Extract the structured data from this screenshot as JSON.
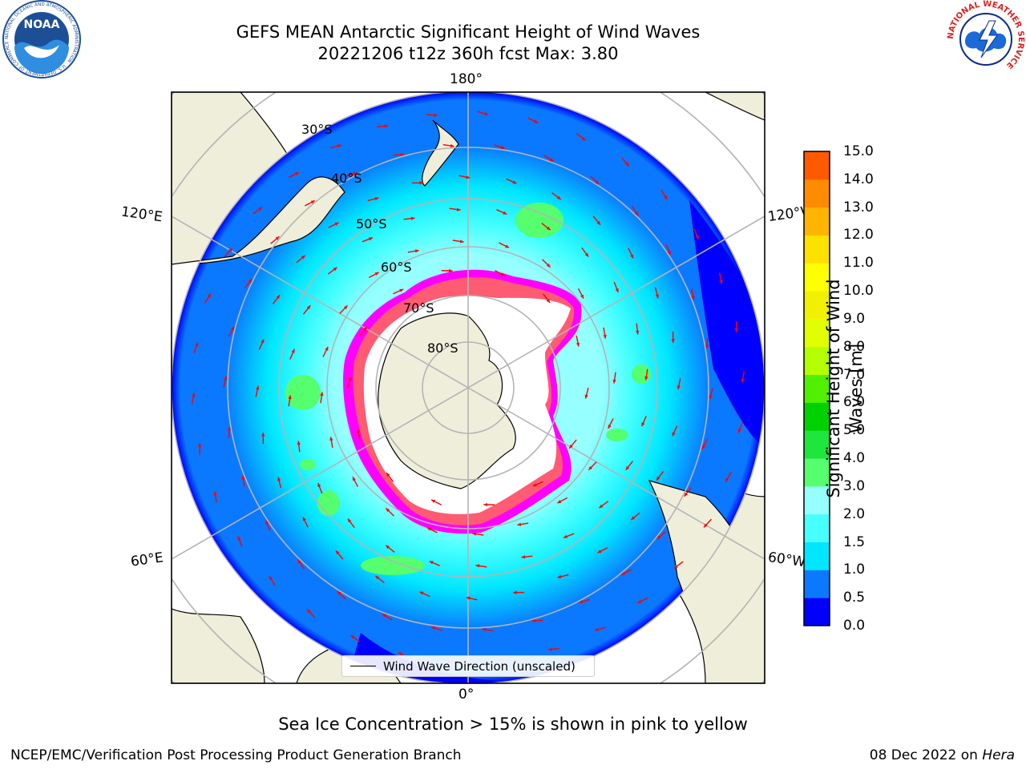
{
  "title": {
    "line1": "GEFS MEAN Antarctic Significant Height of Wind Waves",
    "line2": "20221206 t12z 360h fcst   Max: 3.80"
  },
  "logos": {
    "left": {
      "name": "noaa-logo",
      "text": "NOAA",
      "ring_text": "NATIONAL OCEANIC AND ATMOSPHERIC ADMINISTRATION · U.S. DEPARTMENT OF COMMERCE"
    },
    "right": {
      "name": "nws-logo",
      "ring_text": "NATIONAL WEATHER SERVICE"
    }
  },
  "map": {
    "projection": "south-polar-stereographic",
    "longitude_labels": {
      "top": "180°",
      "bottom": "0°",
      "upper_left": "120°E",
      "upper_right": "120°W",
      "lower_left": "60°E",
      "lower_right": "60°W"
    },
    "latitude_labels": [
      "30°S",
      "40°S",
      "50°S",
      "60°S",
      "70°S",
      "80°S"
    ],
    "colors": {
      "land": "#efeedb",
      "ice_region": "#ffffff",
      "arrows": "#ff0000",
      "grid": "#b4b4b4",
      "sea_ice": [
        "#ff00ff",
        "#ff66ff",
        "#ffa500",
        "#ffff00"
      ]
    }
  },
  "legend": {
    "label": "Wind Wave Direction (unscaled)"
  },
  "colorbar": {
    "label": "Significant Height of Wind Waves [m]",
    "label_line1": "Significant Height of Wind",
    "label_line2": "Waves [m]",
    "ticks": [
      "0.0",
      "0.5",
      "1.0",
      "1.5",
      "2.0",
      "3.0",
      "4.0",
      "5.0",
      "6.0",
      "7.0",
      "8.0",
      "9.0",
      "10.0",
      "11.0",
      "12.0",
      "13.0",
      "14.0",
      "15.0"
    ],
    "colors": [
      "#0000ff",
      "#0a78ff",
      "#00e6ff",
      "#46ffff",
      "#96ffff",
      "#55ff6e",
      "#1ee63c",
      "#00d200",
      "#50f000",
      "#b4ff00",
      "#e1ff00",
      "#f0f000",
      "#ffff00",
      "#ffe100",
      "#ffb400",
      "#ff8c00",
      "#ff5a00",
      "#ff2800"
    ]
  },
  "note": "Sea Ice Concentration > 15% is shown in pink to yellow",
  "footer": {
    "left": "NCEP/EMC/Verification Post Processing Product Generation Branch",
    "right_prefix": "08 Dec 2022 on ",
    "right_machine": "Hera"
  }
}
